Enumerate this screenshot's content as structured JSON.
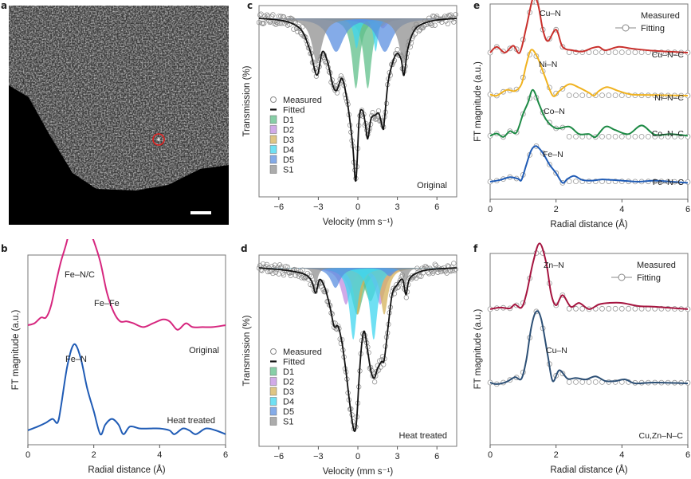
{
  "panels": {
    "a": {
      "letter": "a",
      "marker_color": "#e0201f",
      "scale_bar_color": "#ffffff"
    },
    "b": {
      "letter": "b"
    },
    "c": {
      "letter": "c"
    },
    "d": {
      "letter": "d"
    },
    "e": {
      "letter": "e"
    },
    "f": {
      "letter": "f"
    }
  },
  "chart_data": [
    {
      "id": "b",
      "type": "line",
      "xlabel": "Radial distance (Å)",
      "ylabel": "FT magnitude (a.u.)",
      "xlim": [
        0,
        6
      ],
      "xticks": [
        "0",
        "2",
        "4",
        "6"
      ],
      "series": [
        {
          "name": "Original",
          "color": "#d6267e",
          "offset": 0.55,
          "x": [
            0,
            0.2,
            0.4,
            0.55,
            0.7,
            0.85,
            1.0,
            1.2,
            1.4,
            1.55,
            1.7,
            1.85,
            2.0,
            2.2,
            2.4,
            2.6,
            2.8,
            3.0,
            3.2,
            3.5,
            3.8,
            4.1,
            4.3,
            4.5,
            4.6,
            4.8,
            5.0,
            5.3,
            5.6,
            6.0
          ],
          "y": [
            0.0,
            0.01,
            0.04,
            0.04,
            0.1,
            0.22,
            0.33,
            0.45,
            0.63,
            0.7,
            0.64,
            0.5,
            0.44,
            0.33,
            0.17,
            0.07,
            0.02,
            0.02,
            0.01,
            -0.01,
            0.01,
            0.03,
            0.02,
            -0.02,
            -0.02,
            0.01,
            -0.01,
            -0.01,
            -0.01,
            0.0
          ]
        },
        {
          "name": "Heat treated",
          "color": "#1f5bb5",
          "offset": 0.0,
          "x": [
            0,
            0.3,
            0.55,
            0.75,
            0.9,
            1.0,
            1.2,
            1.4,
            1.6,
            1.8,
            2.0,
            2.2,
            2.35,
            2.55,
            2.75,
            2.9,
            3.1,
            3.4,
            3.7,
            4.0,
            4.3,
            4.45,
            4.7,
            4.9,
            5.1,
            5.4,
            5.7,
            6.0
          ],
          "y": [
            0.0,
            0.02,
            0.04,
            0.06,
            0.04,
            0.12,
            0.34,
            0.45,
            0.38,
            0.22,
            0.1,
            -0.02,
            0.03,
            0.06,
            0.03,
            -0.02,
            0.02,
            0.01,
            0.01,
            0.01,
            0.0,
            -0.02,
            0.01,
            0.0,
            -0.02,
            0.01,
            0.0,
            -0.02
          ]
        }
      ],
      "annotations": [
        "Fe–N/C",
        "Fe–Fe",
        "Original",
        "Fe–N",
        "Heat treated"
      ]
    },
    {
      "id": "c",
      "type": "line",
      "xlabel": "Velocity (mm s⁻¹)",
      "ylabel": "Transmission (%)",
      "xlim": [
        -7.5,
        7.5
      ],
      "xticks": [
        "−6",
        "−3",
        "0",
        "3",
        "6"
      ],
      "xtick_values": [
        -6,
        -3,
        0,
        3,
        6
      ],
      "label": "Original",
      "legend": [
        "Measured",
        "Fitted",
        "D1",
        "D2",
        "D3",
        "D4",
        "D5",
        "S1"
      ],
      "components": [
        {
          "name": "D1",
          "color": "#5fbf8a",
          "peaks": [
            [
              -0.15,
              0.42,
              0.35
            ],
            [
              0.75,
              0.42,
              0.35
            ]
          ]
        },
        {
          "name": "D2",
          "color": "#c18ee0",
          "peaks": [
            [
              1.9,
              0.06,
              0.4
            ]
          ]
        },
        {
          "name": "D3",
          "color": "#d4b25a",
          "peaks": [
            [
              1.8,
              0.05,
              0.4
            ]
          ]
        },
        {
          "name": "D4",
          "color": "#3fd6ef",
          "peaks": [
            [
              -0.1,
              0.18,
              0.25
            ],
            [
              1.35,
              0.2,
              0.2
            ]
          ]
        },
        {
          "name": "D5",
          "color": "#5b8fe0",
          "peaks": [
            [
              -1.65,
              0.2,
              0.7
            ],
            [
              2.05,
              0.2,
              0.7
            ]
          ]
        },
        {
          "name": "S1",
          "color": "#909090",
          "peaks": [
            [
              -3.1,
              0.27,
              0.45
            ],
            [
              3.5,
              0.27,
              0.45
            ]
          ]
        }
      ],
      "fitted": {
        "x": [
          -7.5,
          -6,
          -5,
          -4.2,
          -3.6,
          -3.1,
          -2.7,
          -2.3,
          -1.9,
          -1.6,
          -1.2,
          -0.8,
          -0.4,
          -0.15,
          0.1,
          0.35,
          0.55,
          0.75,
          1.0,
          1.3,
          1.6,
          1.9,
          2.0,
          2.3,
          2.7,
          3.0,
          3.3,
          3.5,
          3.8,
          4.3,
          5,
          6,
          7.5
        ],
        "y": [
          0.0,
          -0.01,
          -0.03,
          -0.08,
          -0.2,
          -0.34,
          -0.2,
          -0.26,
          -0.4,
          -0.43,
          -0.36,
          -0.5,
          -0.75,
          -0.97,
          -0.6,
          -0.55,
          -0.62,
          -0.72,
          -0.6,
          -0.58,
          -0.57,
          -0.66,
          -0.62,
          -0.38,
          -0.25,
          -0.21,
          -0.25,
          -0.34,
          -0.18,
          -0.07,
          -0.03,
          -0.01,
          0.0
        ]
      },
      "ylim": [
        -1.05,
        0.06
      ]
    },
    {
      "id": "d",
      "type": "line",
      "xlabel": "Velocity (mm s⁻¹)",
      "ylabel": "Transmission (%)",
      "xlim": [
        -7.5,
        7.5
      ],
      "xticks": [
        "−6",
        "−3",
        "0",
        "3",
        "6"
      ],
      "xtick_values": [
        -6,
        -3,
        0,
        3,
        6
      ],
      "label": "Heat treated",
      "legend": [
        "Measured",
        "Fitted",
        "D1",
        "D2",
        "D3",
        "D4",
        "D5",
        "S1"
      ],
      "components": [
        {
          "name": "D1",
          "color": "#5fbf8a",
          "peaks": [
            [
              -0.05,
              0.28,
              0.55
            ],
            [
              0.95,
              0.2,
              0.55
            ]
          ]
        },
        {
          "name": "D2",
          "color": "#c18ee0",
          "peaks": [
            [
              -0.9,
              0.22,
              0.45
            ],
            [
              1.7,
              0.22,
              0.45
            ]
          ]
        },
        {
          "name": "D3",
          "color": "#d4b25a",
          "peaks": [
            [
              0.0,
              0.28,
              0.35
            ],
            [
              2.0,
              0.28,
              0.35
            ]
          ]
        },
        {
          "name": "D4",
          "color": "#3fd6ef",
          "peaks": [
            [
              -0.35,
              0.43,
              0.35
            ],
            [
              1.2,
              0.43,
              0.35
            ]
          ]
        },
        {
          "name": "D5",
          "color": "#5b8fe0",
          "peaks": [
            [
              -1.7,
              0.12,
              0.45
            ],
            [
              2.4,
              0.05,
              0.4
            ]
          ]
        },
        {
          "name": "S1",
          "color": "#909090",
          "peaks": [
            [
              -3.2,
              0.1,
              0.2
            ],
            [
              3.6,
              0.1,
              0.2
            ]
          ]
        }
      ],
      "fitted": {
        "x": [
          -7.5,
          -6,
          -5,
          -4,
          -3.5,
          -3.2,
          -2.9,
          -2.5,
          -2.1,
          -1.8,
          -1.5,
          -1.2,
          -0.9,
          -0.6,
          -0.3,
          -0.1,
          0.1,
          0.3,
          0.5,
          0.75,
          1.0,
          1.25,
          1.5,
          1.8,
          2.0,
          2.3,
          2.6,
          3.0,
          3.4,
          3.65,
          3.9,
          4.5,
          5.5,
          7.5
        ],
        "y": [
          0.0,
          -0.01,
          -0.02,
          -0.04,
          -0.08,
          -0.15,
          -0.07,
          -0.12,
          -0.24,
          -0.35,
          -0.35,
          -0.45,
          -0.62,
          -0.82,
          -0.97,
          -0.92,
          -0.65,
          -0.45,
          -0.38,
          -0.5,
          -0.62,
          -0.66,
          -0.6,
          -0.56,
          -0.55,
          -0.35,
          -0.16,
          -0.1,
          -0.07,
          -0.16,
          -0.07,
          -0.03,
          -0.01,
          0.0
        ]
      },
      "ylim": [
        -1.05,
        0.06
      ]
    },
    {
      "id": "e",
      "type": "line",
      "xlabel": "Radial distance (Å)",
      "ylabel": "FT magnitude (a.u.)",
      "xlim": [
        0,
        6
      ],
      "xticks": [
        "0",
        "2",
        "4",
        "6"
      ],
      "legend": [
        "Measured",
        "Fitting"
      ],
      "series": [
        {
          "name": "Cu–N–C",
          "peak_label": "Cu–N",
          "color": "#c9302c",
          "offset": 2.25,
          "x": [
            0,
            0.2,
            0.45,
            0.7,
            0.9,
            1.1,
            1.3,
            1.45,
            1.6,
            1.75,
            2.0,
            2.2,
            2.5,
            2.8,
            3.1,
            3.3,
            3.5,
            3.9,
            4.3,
            5,
            6
          ],
          "y": [
            0,
            0.1,
            0.0,
            0.12,
            0.0,
            0.45,
            0.95,
            0.85,
            0.4,
            0.2,
            0.4,
            0.1,
            0.04,
            0.02,
            0.08,
            0.1,
            0.04,
            0.1,
            0.07,
            0.03,
            0.0
          ]
        },
        {
          "name": "Ni–N–C",
          "peak_label": "Ni–N",
          "color": "#f0b21f",
          "offset": 1.5,
          "x": [
            0,
            0.2,
            0.5,
            0.75,
            0.95,
            1.1,
            1.25,
            1.45,
            1.65,
            1.9,
            2.1,
            2.4,
            2.7,
            3.0,
            3.15,
            3.3,
            3.55,
            3.9,
            4.3,
            5,
            6
          ],
          "y": [
            0.02,
            0.0,
            0.1,
            0.08,
            0.2,
            0.55,
            0.8,
            0.65,
            0.35,
            0.0,
            0.08,
            0.2,
            0.14,
            0.05,
            0.0,
            0.08,
            0.15,
            0.08,
            0.02,
            0.01,
            0.0
          ]
        },
        {
          "name": "Co–N–C",
          "peak_label": "Co–N",
          "color": "#1d8a45",
          "offset": 0.78,
          "x": [
            0,
            0.2,
            0.4,
            0.6,
            0.8,
            1.0,
            1.15,
            1.3,
            1.5,
            1.7,
            2.0,
            2.4,
            2.7,
            3.0,
            3.2,
            3.5,
            3.8,
            4.2,
            4.6,
            5.0,
            5.5,
            6
          ],
          "y": [
            0.02,
            0.06,
            0.0,
            0.1,
            0.08,
            0.4,
            0.6,
            0.82,
            0.55,
            0.3,
            0.15,
            0.18,
            0.05,
            0.05,
            0.0,
            0.18,
            0.12,
            0.05,
            0.2,
            0.04,
            0.05,
            0.02
          ]
        },
        {
          "name": "Fe–N–C",
          "peak_label": "Fe–N",
          "color": "#1f5bb5",
          "offset": 0.0,
          "x": [
            0,
            0.3,
            0.6,
            0.85,
            0.95,
            1.1,
            1.25,
            1.4,
            1.6,
            1.8,
            2.0,
            2.2,
            2.35,
            2.55,
            2.8,
            3.1,
            3.4,
            3.7,
            4.0,
            4.5,
            5,
            5.5,
            6
          ],
          "y": [
            0,
            0.03,
            0.08,
            0.05,
            0.03,
            0.3,
            0.55,
            0.62,
            0.5,
            0.3,
            0.15,
            -0.02,
            0.05,
            0.1,
            0.03,
            0.02,
            0.04,
            0.03,
            0.02,
            0.0,
            0.02,
            0.0,
            -0.02
          ]
        }
      ]
    },
    {
      "id": "f",
      "type": "line",
      "xlabel": "Radial distance (Å)",
      "ylabel": "FT magnitude (a.u.)",
      "xlim": [
        0,
        6
      ],
      "xticks": [
        "0",
        "2",
        "4",
        "6"
      ],
      "legend": [
        "Measured",
        "Fitting"
      ],
      "sample_label": "Cu,Zn–N–C",
      "series": [
        {
          "name": "Zn",
          "peak_label": "Zn–N",
          "color": "#a5143f",
          "offset": 0.95,
          "x": [
            0,
            0.3,
            0.6,
            0.75,
            0.95,
            1.1,
            1.3,
            1.5,
            1.7,
            1.85,
            2.0,
            2.2,
            2.45,
            2.7,
            3.0,
            3.3,
            3.6,
            4.0,
            4.5,
            5,
            6
          ],
          "y": [
            0,
            0.02,
            0.01,
            0.06,
            0.02,
            0.2,
            0.6,
            0.85,
            0.6,
            0.2,
            0.05,
            0.18,
            0.03,
            0.08,
            0.0,
            0.06,
            0.08,
            0.08,
            0.04,
            0.03,
            0.0
          ]
        },
        {
          "name": "Cu",
          "peak_label": "Cu–N",
          "color": "#2c4f75",
          "offset": 0.0,
          "x": [
            0,
            0.2,
            0.5,
            0.75,
            0.95,
            1.1,
            1.25,
            1.4,
            1.55,
            1.75,
            1.9,
            2.1,
            2.35,
            2.6,
            2.9,
            3.2,
            3.5,
            3.8,
            4.1,
            4.4,
            5,
            6
          ],
          "y": [
            0,
            -0.02,
            0.01,
            0.07,
            0.05,
            0.3,
            0.72,
            0.92,
            0.82,
            0.35,
            0.02,
            0.16,
            0.05,
            0.06,
            0.04,
            0.08,
            0.02,
            0.02,
            0.04,
            -0.01,
            0.0,
            -0.01
          ]
        }
      ]
    }
  ]
}
